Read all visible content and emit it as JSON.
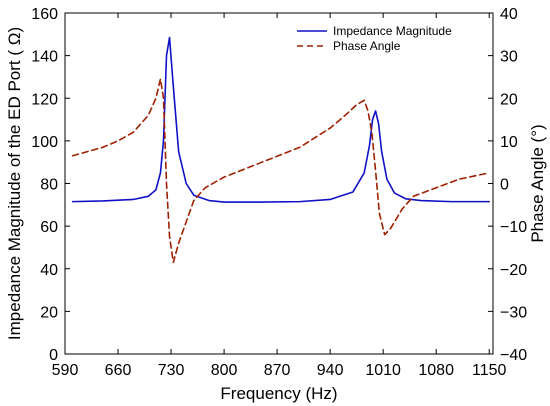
{
  "chart_data": {
    "type": "line",
    "title": "",
    "xlabel": "Frequency (Hz)",
    "ylabel_left": "Impedance Magnitude of the ED Port ( Ω)",
    "ylabel_right": "Phase Angle (°)",
    "xlim": [
      590,
      1155
    ],
    "ylim_left": [
      0,
      160
    ],
    "ylim_right": [
      -40,
      40
    ],
    "x_ticks": [
      590,
      660,
      730,
      800,
      870,
      940,
      1010,
      1080,
      1150
    ],
    "y_ticks_left": [
      0,
      20,
      40,
      60,
      80,
      100,
      120,
      140,
      160
    ],
    "y_ticks_right": [
      -40,
      -30,
      -20,
      -10,
      0,
      10,
      20,
      30,
      40
    ],
    "x_tick_labels": [
      "590",
      "660",
      "730",
      "800",
      "870",
      "940",
      "1010",
      "1080",
      "1150"
    ],
    "y_tick_labels_left": [
      "0",
      "20",
      "40",
      "60",
      "80",
      "100",
      "120",
      "140",
      "160"
    ],
    "y_tick_labels_right": [
      "−40",
      "−30",
      "−20",
      "−10",
      "0",
      "10",
      "20",
      "30",
      "40"
    ],
    "grid": false,
    "legend_position": "top-right",
    "series": [
      {
        "name": "Impedance Magnitude",
        "axis": "left",
        "color": "#1010c8",
        "style": "solid",
        "x": [
          600,
          640,
          680,
          700,
          710,
          716,
          720,
          724,
          728,
          732,
          740,
          750,
          760,
          780,
          800,
          850,
          900,
          940,
          970,
          985,
          992,
          996,
          1000,
          1004,
          1008,
          1015,
          1025,
          1040,
          1060,
          1100,
          1150
        ],
        "y": [
          71.5,
          71.8,
          72.5,
          74,
          77,
          85,
          100,
          140,
          148.5,
          130,
          95,
          80,
          74.5,
          72,
          71.3,
          71.3,
          71.5,
          72.5,
          76,
          85,
          98,
          110,
          114,
          108,
          95,
          82,
          75.5,
          72.8,
          72,
          71.5,
          71.5
        ]
      },
      {
        "name": "Phase Angle",
        "axis": "right",
        "color": "#a02000",
        "style": "dashed",
        "x": [
          600,
          620,
          640,
          660,
          680,
          700,
          710,
          716,
          720,
          724,
          728,
          733,
          740,
          750,
          760,
          775,
          800,
          850,
          900,
          940,
          960,
          975,
          985,
          990,
          995,
          1000,
          1005,
          1012,
          1020,
          1035,
          1050,
          1080,
          1110,
          1150
        ],
        "y": [
          6.5,
          7.5,
          8.5,
          10,
          12,
          16,
          20,
          24.5,
          20,
          0,
          -12.5,
          -18.5,
          -14,
          -9,
          -4,
          -1,
          1.5,
          5,
          8.5,
          13,
          16,
          18.5,
          19.5,
          17,
          12,
          3,
          -7,
          -12,
          -10.5,
          -6,
          -3,
          -1,
          1,
          2.5
        ]
      }
    ]
  }
}
